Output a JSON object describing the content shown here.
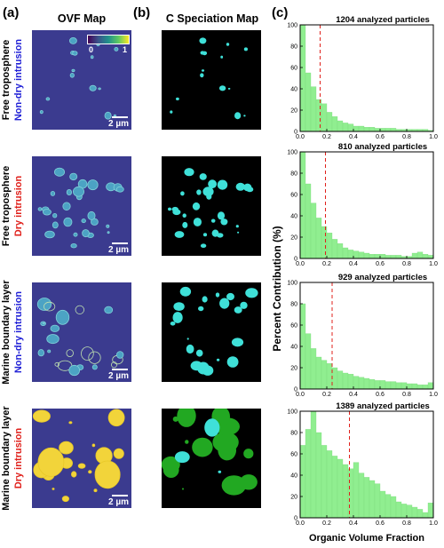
{
  "panels": {
    "a": {
      "letter": "(a)",
      "title": "OVF Map"
    },
    "b": {
      "letter": "(b)",
      "title": "C Speciation Map"
    },
    "c": {
      "letter": "(c)"
    }
  },
  "rows": [
    {
      "line1": "Free troposphere",
      "line2": "Non-dry intrusion",
      "line2_color": "#1f1fd6",
      "scale_label": "2 µm"
    },
    {
      "line1": "Free troposphere",
      "line2": "Dry intrusion",
      "line2_color": "#e0201b",
      "scale_label": "2 µm"
    },
    {
      "line1": "Marine boundary layer",
      "line2": "Non-dry intrusion",
      "line2_color": "#1f1fd6",
      "scale_label": "2 µm"
    },
    {
      "line1": "Marine boundary layer",
      "line2": "Dry intrusion",
      "line2_color": "#e0201b",
      "scale_label": "2 µm"
    }
  ],
  "colorbar": {
    "min_label": "0",
    "max_label": "1"
  },
  "colors": {
    "ovf_background": "#3b3b8f",
    "carbon_background": "#000000",
    "hist_fill": "#90ee90",
    "hist_edge": "#7ad67a",
    "median_line": "#e0201b"
  },
  "chart_data": {
    "type": "bar",
    "xlabel": "Organic Volume Fraction",
    "ylabel": "Percent Contribution (%)",
    "xlim": [
      0,
      1
    ],
    "ylim": [
      0,
      100
    ],
    "xticks": [
      "0.0",
      "0.2",
      "0.4",
      "0.6",
      "0.8",
      "1.0"
    ],
    "yticks": [
      "0",
      "20",
      "40",
      "60",
      "80",
      "100"
    ],
    "bin_width": 0.04,
    "panels": [
      {
        "title": "1204 analyzed particles",
        "median": 0.15,
        "values": [
          100,
          55,
          42,
          30,
          26,
          18,
          14,
          10,
          8,
          7,
          5,
          5,
          4,
          4,
          3,
          3,
          3,
          3,
          2,
          2,
          2,
          2,
          2,
          2,
          1
        ]
      },
      {
        "title": "810 analyzed particles",
        "median": 0.19,
        "values": [
          100,
          70,
          52,
          38,
          30,
          24,
          18,
          14,
          10,
          8,
          7,
          6,
          5,
          4,
          4,
          4,
          3,
          3,
          3,
          2,
          2,
          5,
          6,
          4,
          3
        ]
      },
      {
        "title": "929 analyzed particles",
        "median": 0.24,
        "values": [
          80,
          52,
          38,
          30,
          27,
          24,
          20,
          17,
          15,
          14,
          12,
          11,
          10,
          9,
          8,
          8,
          7,
          7,
          6,
          6,
          5,
          5,
          4,
          4,
          6
        ]
      },
      {
        "title": "1389 analyzed particles",
        "median": 0.37,
        "values": [
          68,
          83,
          100,
          80,
          68,
          63,
          58,
          55,
          50,
          46,
          52,
          42,
          38,
          35,
          32,
          25,
          22,
          20,
          15,
          13,
          12,
          10,
          8,
          5,
          14
        ]
      }
    ]
  }
}
